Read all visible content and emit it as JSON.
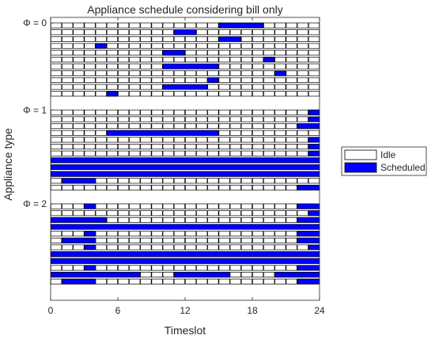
{
  "chart_data": {
    "type": "heatmap",
    "title": "Appliance schedule considering bill only",
    "xlabel": "Timeslot",
    "ylabel": "Appliance type",
    "xlim": [
      0,
      24
    ],
    "xticks": [
      "0",
      "6",
      "12",
      "18",
      "24"
    ],
    "grid": false,
    "legend_position": "right",
    "legend": [
      {
        "label": "Idle",
        "color": "#ffffff"
      },
      {
        "label": "Scheduled",
        "color": "#0000ff"
      }
    ],
    "groups": [
      {
        "label": "Φ = 0",
        "rows": [
          [
            [
              15,
              19
            ]
          ],
          [
            [
              11,
              13
            ]
          ],
          [
            [
              15,
              17
            ]
          ],
          [
            [
              4,
              5
            ]
          ],
          [
            [
              10,
              12
            ]
          ],
          [
            [
              19,
              20
            ]
          ],
          [
            [
              10,
              15
            ]
          ],
          [
            [
              20,
              21
            ]
          ],
          [
            [
              14,
              15
            ]
          ],
          [
            [
              10,
              14
            ]
          ],
          [
            [
              5,
              6
            ]
          ]
        ]
      },
      {
        "label": "Φ = 1",
        "rows": [
          [
            [
              23,
              24
            ]
          ],
          [
            [
              23,
              24
            ]
          ],
          [
            [
              22,
              24
            ]
          ],
          [
            [
              5,
              15
            ]
          ],
          [
            [
              23,
              24
            ]
          ],
          [
            [
              23,
              24
            ]
          ],
          [
            [
              23,
              24
            ]
          ],
          [
            [
              0,
              24
            ]
          ],
          [
            [
              0,
              24
            ]
          ],
          [
            [
              0,
              24
            ]
          ],
          [
            [
              1,
              4
            ]
          ],
          [
            [
              22,
              24
            ]
          ]
        ]
      },
      {
        "label": "Φ = 2",
        "rows": [
          [
            [
              3,
              4
            ],
            [
              22,
              24
            ]
          ],
          [
            [
              23,
              24
            ]
          ],
          [
            [
              0,
              5
            ],
            [
              22,
              24
            ]
          ],
          [
            [
              0,
              24
            ]
          ],
          [
            [
              3,
              4
            ],
            [
              22,
              24
            ]
          ],
          [
            [
              1,
              4
            ],
            [
              22,
              24
            ]
          ],
          [
            [
              3,
              4
            ],
            [
              23,
              24
            ]
          ],
          [
            [
              0,
              24
            ]
          ],
          [
            [
              0,
              24
            ]
          ],
          [
            [
              3,
              4
            ],
            [
              22,
              24
            ]
          ],
          [
            [
              0,
              8
            ],
            [
              11,
              16
            ],
            [
              20,
              24
            ]
          ],
          [
            [
              1,
              4
            ],
            [
              22,
              24
            ]
          ]
        ]
      }
    ]
  }
}
